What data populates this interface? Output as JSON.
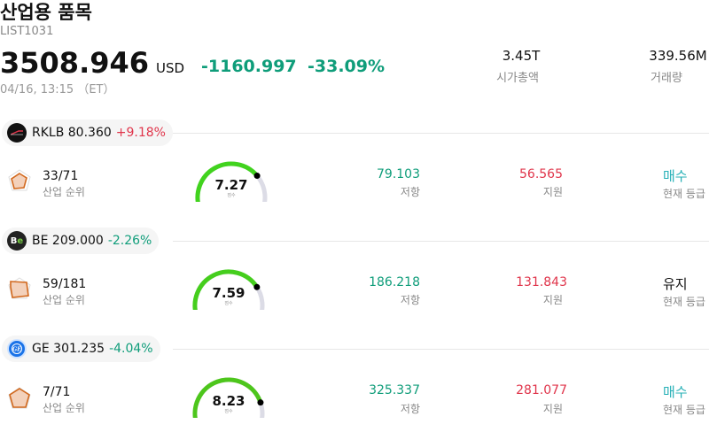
{
  "header": {
    "title": "산업용 품목",
    "code": "LIST1031",
    "price": "3508.946",
    "currency": "USD",
    "change": "-1160.997",
    "change_pct": "-33.09%",
    "time": "04/16, 13:15 （ET）",
    "market_cap_value": "3.45T",
    "market_cap_label": "시가총액",
    "volume_value": "339.56M",
    "volume_label": "거래량"
  },
  "stocks": [
    {
      "ticker": "RKLB",
      "price": "80.360",
      "change": "+9.18%",
      "direction": "up",
      "rank": "33/71",
      "rank_label": "산업 순위",
      "score": "7.27",
      "score_level": 0.727,
      "score_sub": "점수",
      "resistance": "79.103",
      "resistance_label": "저항",
      "support": "56.565",
      "support_label": "지원",
      "signal": "매수",
      "signal_label": "현재 등급",
      "logo_color": "#111111"
    },
    {
      "ticker": "BE",
      "price": "209.000",
      "change": "-2.26%",
      "direction": "down",
      "rank": "59/181",
      "rank_label": "산업 순위",
      "score": "7.59",
      "score_level": 0.759,
      "score_sub": "점수",
      "resistance": "186.218",
      "resistance_label": "저항",
      "support": "131.843",
      "support_label": "지원",
      "signal": "유지",
      "signal_label": "현재 등급",
      "logo_color": "#222222"
    },
    {
      "ticker": "GE",
      "price": "301.235",
      "change": "-4.04%",
      "direction": "down",
      "rank": "7/71",
      "rank_label": "산업 순위",
      "score": "8.23",
      "score_level": 0.823,
      "score_sub": "점수",
      "resistance": "325.337",
      "resistance_label": "저항",
      "support": "281.077",
      "support_label": "지원",
      "signal": "매수",
      "signal_label": "현재 등급",
      "logo_color": "#1a73e8"
    }
  ],
  "colors": {
    "positive": "#e0354b",
    "negative": "#0f9d7a",
    "buy": "#26b0b6",
    "gauge_start": "#66dd11",
    "gauge_track": "#dcdce6"
  }
}
